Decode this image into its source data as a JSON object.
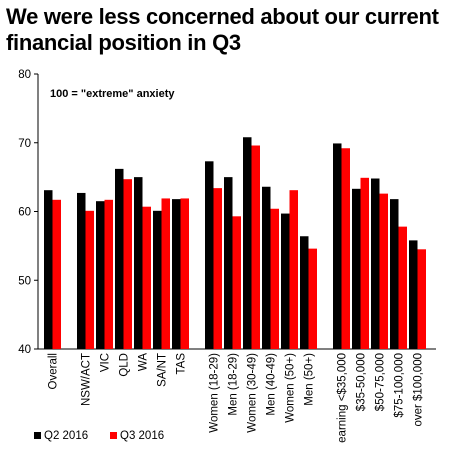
{
  "chart_data": {
    "type": "bar",
    "title": "We were less concerned about our current financial position in Q3",
    "annotation": "100 = \"extreme\" anxiety",
    "ylim": [
      40,
      80
    ],
    "yticks": [
      "40",
      "50",
      "60",
      "70",
      "80"
    ],
    "grid": false,
    "legend_position": "bottom-left",
    "categories": [
      "Overall",
      "NSW/ACT",
      "VIC",
      "QLD",
      "WA",
      "SA/NT",
      "TAS",
      "Women (18-29)",
      "Men (18-29)",
      "Women (30-49)",
      "Men (40-49)",
      "Women (50+)",
      "Men (50+)",
      "earning <$35,000",
      "$35-50,000",
      "$50-75,000",
      "$75-100,000",
      "over $100,000"
    ],
    "groups": [
      [
        0
      ],
      [
        1,
        2,
        3,
        4,
        5,
        6
      ],
      [
        7,
        8,
        9,
        10,
        11,
        12
      ],
      [
        13,
        14,
        15,
        16,
        17
      ]
    ],
    "series": [
      {
        "name": "Q2 2016",
        "color": "#000000",
        "values": [
          63.1,
          62.7,
          61.5,
          66.2,
          65.0,
          60.1,
          61.8,
          67.3,
          65.0,
          70.8,
          63.6,
          59.7,
          56.4,
          69.9,
          63.3,
          64.8,
          61.8,
          55.8
        ]
      },
      {
        "name": "Q3 2016",
        "color": "#ff0000",
        "values": [
          61.7,
          60.1,
          61.7,
          64.7,
          60.7,
          61.9,
          61.9,
          63.4,
          59.3,
          69.6,
          60.4,
          63.1,
          54.6,
          69.2,
          64.9,
          62.6,
          57.8,
          54.5
        ]
      }
    ]
  }
}
